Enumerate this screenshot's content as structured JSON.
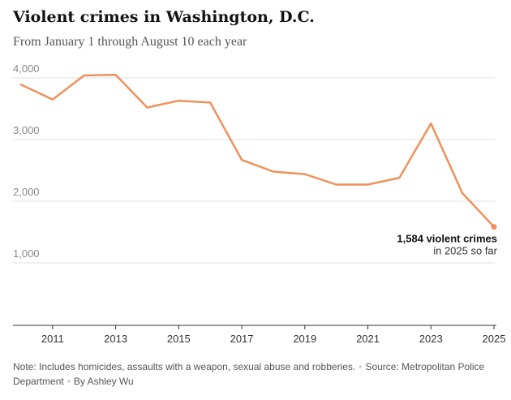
{
  "header": {
    "title": "Violent crimes in Washington, D.C.",
    "subtitle": "From January 1 through August 10 each year"
  },
  "chart_data": {
    "type": "line",
    "title": "Violent crimes in Washington, D.C.",
    "subtitle": "From January 1 through August 10 each year",
    "xlabel": "",
    "ylabel": "",
    "x": [
      2010,
      2011,
      2012,
      2013,
      2014,
      2015,
      2016,
      2017,
      2018,
      2019,
      2020,
      2021,
      2022,
      2023,
      2024,
      2025
    ],
    "series": [
      {
        "name": "Violent crimes",
        "values": [
          3890,
          3650,
          4040,
          4050,
          3520,
          3630,
          3600,
          2670,
          2480,
          2440,
          2270,
          2270,
          2380,
          3260,
          2130,
          1584
        ]
      }
    ],
    "xlim": [
      2010,
      2025
    ],
    "ylim": [
      0,
      4200
    ],
    "y_ticks": [
      1000,
      2000,
      3000,
      4000
    ],
    "y_tick_labels": [
      "1,000",
      "2,000",
      "3,000",
      "4,000"
    ],
    "x_ticks": [
      2011,
      2013,
      2015,
      2017,
      2019,
      2021,
      2023,
      2025
    ],
    "x_tick_labels": [
      "2011",
      "2013",
      "2015",
      "2017",
      "2019",
      "2021",
      "2023",
      "2025"
    ],
    "grid": true,
    "annotation": {
      "value_text": "1,584 violent crimes",
      "sub_text": "in 2025 so far"
    },
    "colors": {
      "line": "#f0915a",
      "grid": "#e2e2e2",
      "axis": "#333333"
    }
  },
  "footer": {
    "note": "Note: Includes homicides, assaults with a weapon, sexual abuse and robberies.",
    "source": "Source: Metropolitan Police Department",
    "byline": "By Ashley Wu",
    "separator": "•"
  }
}
